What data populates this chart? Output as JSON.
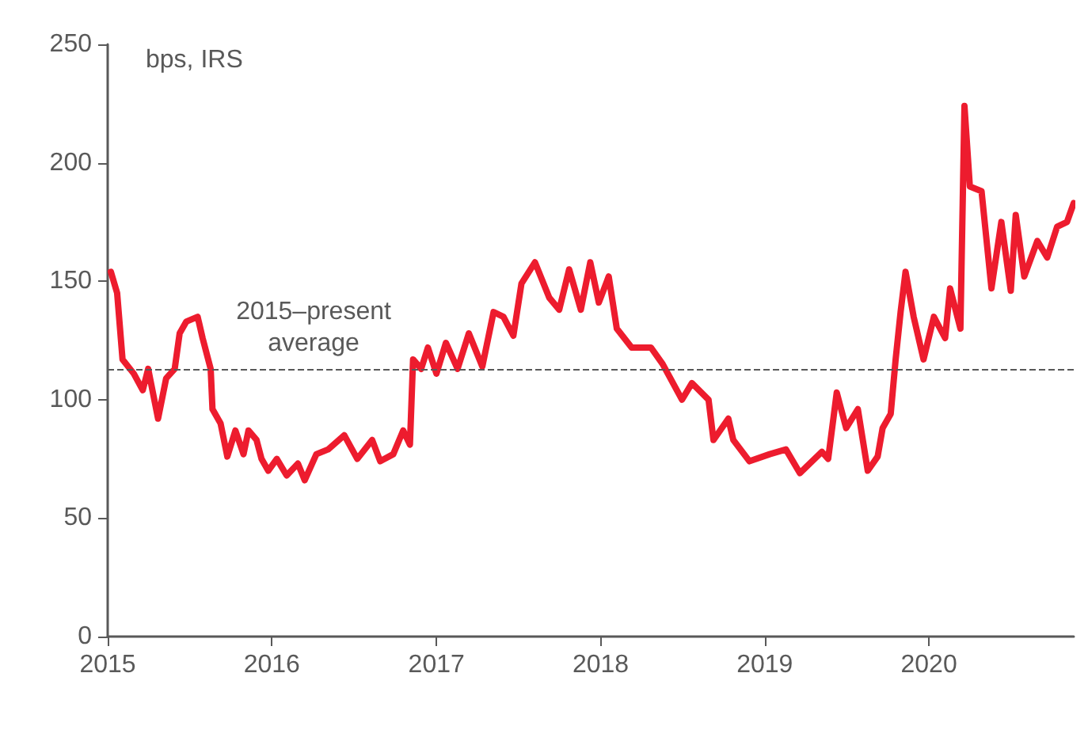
{
  "chart_data": {
    "type": "line",
    "ylabel": "bps, IRS",
    "x": [
      "2015-01-08",
      "2015-01-22",
      "2015-02-03",
      "2015-02-28",
      "2015-03-20",
      "2015-04-01",
      "2015-04-23",
      "2015-05-11",
      "2015-05-30",
      "2015-06-10",
      "2015-06-25",
      "2015-07-20",
      "2015-07-31",
      "2015-08-18",
      "2015-08-22",
      "2015-09-09",
      "2015-09-24",
      "2015-10-12",
      "2015-10-30",
      "2015-11-10",
      "2015-11-28",
      "2015-12-09",
      "2015-12-24",
      "2016-01-12",
      "2016-02-03",
      "2016-02-28",
      "2016-03-14",
      "2016-04-09",
      "2016-05-05",
      "2016-06-10",
      "2016-07-09",
      "2016-08-11",
      "2016-08-29",
      "2016-09-27",
      "2016-10-19",
      "2016-11-03",
      "2016-11-10",
      "2016-11-28",
      "2016-12-13",
      "2017-01-01",
      "2017-01-22",
      "2017-02-17",
      "2017-03-14",
      "2017-04-13",
      "2017-05-08",
      "2017-05-30",
      "2017-06-21",
      "2017-07-09",
      "2017-08-08",
      "2017-09-09",
      "2017-10-01",
      "2017-10-23",
      "2017-11-18",
      "2017-12-09",
      "2017-12-28",
      "2018-01-19",
      "2018-02-06",
      "2018-03-11",
      "2018-04-23",
      "2018-05-19",
      "2018-07-01",
      "2018-07-23",
      "2018-08-29",
      "2018-09-09",
      "2018-10-12",
      "2018-10-23",
      "2018-11-28",
      "2019-01-12",
      "2019-02-17",
      "2019-03-20",
      "2019-05-08",
      "2019-05-22",
      "2019-06-10",
      "2019-07-01",
      "2019-07-27",
      "2019-08-18",
      "2019-09-09",
      "2019-09-20",
      "2019-10-08",
      "2019-10-19",
      "2019-10-30",
      "2019-11-10",
      "2019-11-28",
      "2019-12-20",
      "2020-01-12",
      "2020-02-06",
      "2020-02-17",
      "2020-03-11",
      "2020-03-20",
      "2020-04-01",
      "2020-04-27",
      "2020-05-19",
      "2020-06-10",
      "2020-07-01",
      "2020-07-12",
      "2020-07-31",
      "2020-08-29",
      "2020-09-20",
      "2020-10-12",
      "2020-11-03",
      "2020-11-18"
    ],
    "series": [
      {
        "color": "#ed1c2e",
        "values": [
          154,
          145,
          117,
          111,
          104,
          113,
          92,
          109,
          113,
          128,
          133,
          135,
          126,
          113,
          96,
          90,
          76,
          87,
          77,
          87,
          83,
          75,
          70,
          75,
          68,
          73,
          66,
          77,
          79,
          85,
          75,
          83,
          74,
          77,
          87,
          81,
          117,
          113,
          122,
          111,
          124,
          113,
          128,
          114,
          137,
          135,
          127,
          149,
          158,
          143,
          138,
          155,
          138,
          158,
          141,
          152,
          130,
          122,
          122,
          115,
          100,
          107,
          100,
          83,
          92,
          83,
          74,
          77,
          79,
          69,
          78,
          75,
          103,
          88,
          96,
          70,
          76,
          88,
          94,
          117,
          137,
          154,
          135,
          117,
          135,
          126,
          147,
          130,
          224,
          190,
          188,
          147,
          175,
          146,
          178,
          152,
          167,
          160,
          173,
          175,
          183
        ]
      }
    ],
    "xlim": [
      "2015-01-01",
      "2020-11-18"
    ],
    "xticks": [
      "2015",
      "2016",
      "2017",
      "2018",
      "2019",
      "2020"
    ],
    "ylim": [
      0,
      250
    ],
    "yticks": [
      0,
      50,
      100,
      150,
      200,
      250
    ],
    "ref_lines": [
      {
        "axis": "y",
        "value": 113,
        "label": "2015–present\naverage",
        "color": "#595959",
        "line_style": "dashed"
      }
    ],
    "marker": "none",
    "line_style": "solid"
  }
}
